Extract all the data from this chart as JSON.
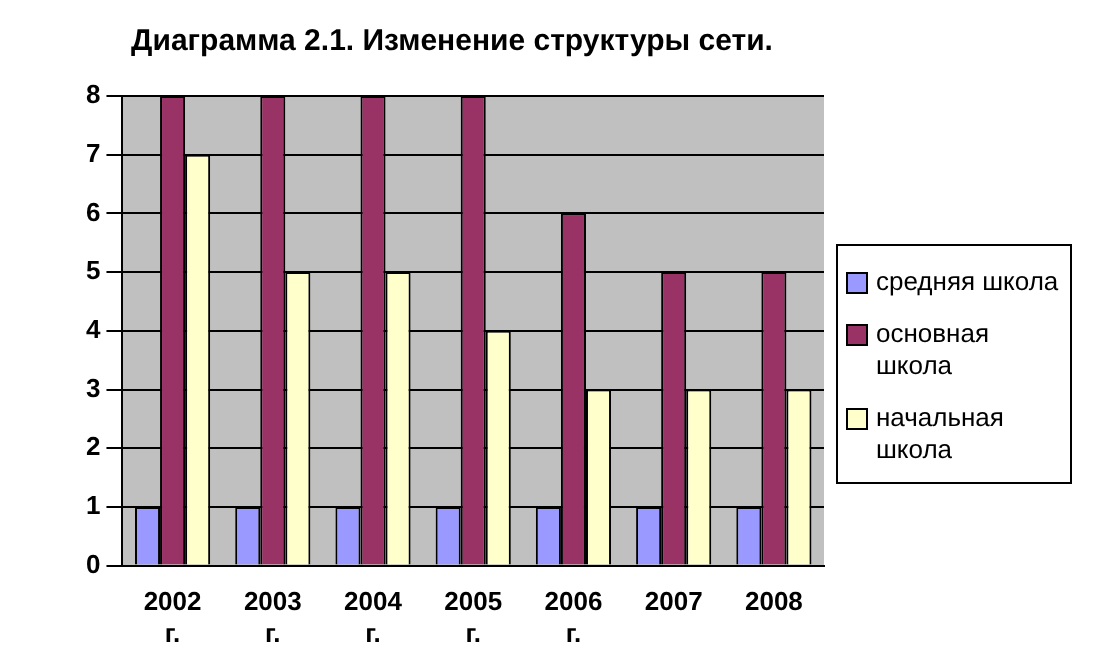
{
  "chart_data": {
    "type": "bar",
    "title": "Диаграмма 2.1. Изменение структуры сети.",
    "categories": [
      "2002 г.",
      "2003 г.",
      "2004 г.",
      "2005 г.",
      "2006 г.",
      "2007",
      "2008"
    ],
    "series": [
      {
        "name": "средняя школа",
        "color": "#9999ff",
        "values": [
          1,
          1,
          1,
          1,
          1,
          1,
          1
        ]
      },
      {
        "name": "основная школа",
        "color": "#993366",
        "values": [
          8,
          8,
          8,
          8,
          6,
          5,
          5
        ]
      },
      {
        "name": "начальная школа",
        "color": "#ffffcc",
        "values": [
          7,
          5,
          5,
          4,
          3,
          3,
          3
        ]
      }
    ],
    "ylim": [
      0,
      8
    ],
    "yticks": [
      0,
      1,
      2,
      3,
      4,
      5,
      6,
      7,
      8
    ],
    "grid": "y",
    "legend": "right"
  }
}
